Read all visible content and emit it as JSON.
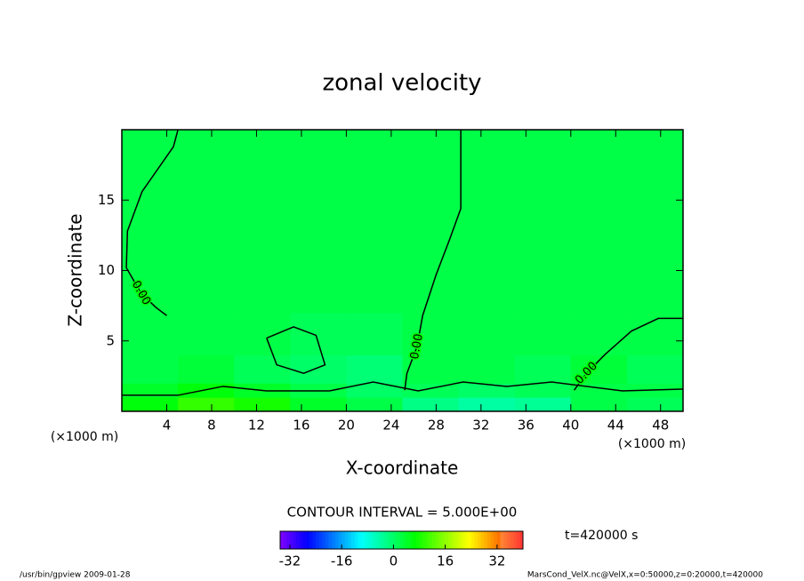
{
  "chart_data": {
    "type": "contour",
    "title": "zonal velocity",
    "x_label": "X-coordinate",
    "y_label": "Z-coordinate",
    "x_unit": "(×1000 m)",
    "xlim": [
      0,
      50
    ],
    "xticks": [
      4,
      8,
      12,
      16,
      20,
      24,
      28,
      32,
      36,
      40,
      44,
      48
    ],
    "ylim": [
      0,
      20
    ],
    "yticks": [
      5,
      10,
      15
    ],
    "field": {
      "x_edges": [
        0,
        5,
        10,
        15,
        20,
        25,
        30,
        35,
        40,
        45,
        50
      ],
      "z_edges": [
        0,
        1,
        2,
        4,
        7,
        20
      ],
      "values": [
        [
          6,
          10,
          8,
          4,
          2,
          -2,
          -4,
          -3,
          2,
          1
        ],
        [
          4,
          6,
          4,
          2,
          0,
          1,
          0,
          1,
          2,
          2
        ],
        [
          2,
          3,
          1,
          0,
          -1,
          2,
          2,
          1,
          3,
          1
        ],
        [
          2,
          2,
          2,
          1,
          1,
          2,
          2,
          2,
          2,
          2
        ],
        [
          2,
          2,
          2,
          2,
          2,
          2,
          2,
          2,
          2,
          2
        ]
      ]
    },
    "contours": [
      {
        "label": "0.00",
        "x": [
          5.0,
          4.6,
          1.8,
          0.5,
          0.4,
          1.7,
          3.0,
          4.0
        ],
        "y": [
          20,
          18.8,
          15.6,
          12.8,
          10.2,
          8.4,
          7.4,
          6.8
        ]
      },
      {
        "label": "0.00",
        "x": [
          30.2,
          30.2,
          29.2,
          28.0,
          26.8,
          26.3,
          25.4,
          25.2
        ],
        "y": [
          20,
          14.4,
          12.2,
          9.7,
          6.8,
          4.6,
          2.7,
          1.5
        ]
      },
      {
        "label": "0.00",
        "x": [
          50,
          47.8,
          45.4,
          43.0,
          41.4,
          40.3
        ],
        "y": [
          6.6,
          6.6,
          5.7,
          4.0,
          2.7,
          1.5
        ]
      },
      {
        "x": [
          12.9,
          15.3,
          17.3,
          18.1,
          16.2,
          13.8,
          12.9
        ],
        "y": [
          5.2,
          6.0,
          5.4,
          3.3,
          2.7,
          3.3,
          5.2
        ]
      },
      {
        "x": [
          0,
          5.0,
          9.0,
          12.9,
          18.5,
          22.4,
          26.4,
          30.4,
          34.3,
          38.3,
          44.6,
          50
        ],
        "y": [
          1.14,
          1.14,
          1.77,
          1.45,
          1.45,
          2.08,
          1.45,
          2.08,
          1.77,
          2.08,
          1.45,
          1.58
        ]
      }
    ],
    "contour_interval": "CONTOUR INTERVAL = 5.000E+00",
    "time_label": "t=420000 s",
    "clim": [
      -35,
      40
    ],
    "cticks": [
      -32,
      -16,
      0,
      16,
      32
    ],
    "footer_left": "/usr/bin/gpview  2009-01-28",
    "footer_right": "MarsCond_VelX.nc@VelX,x=0:50000,z=0:20000,t=420000"
  }
}
